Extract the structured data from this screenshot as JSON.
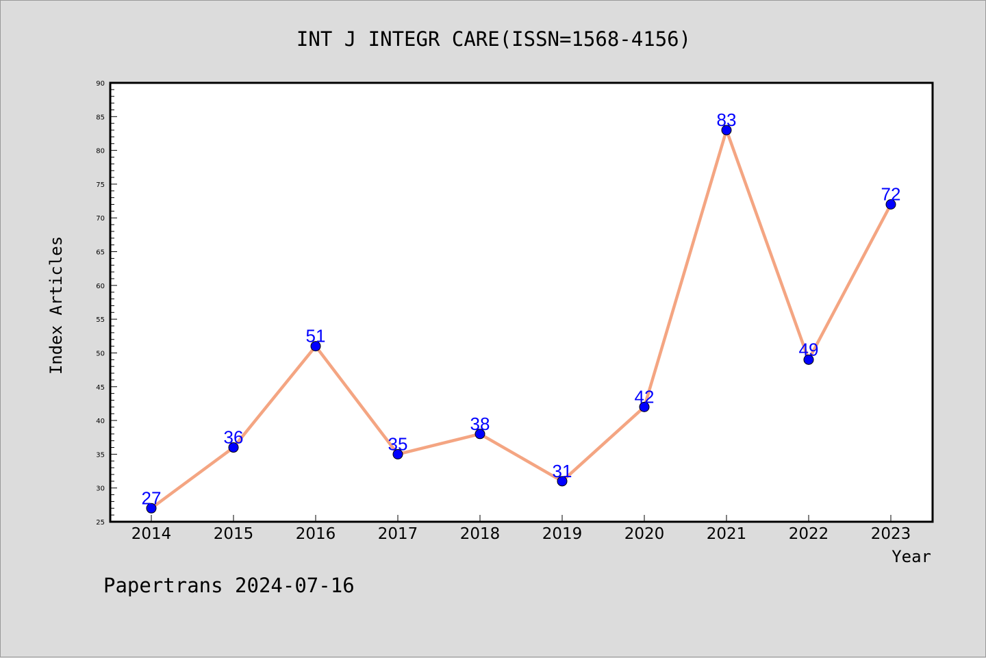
{
  "footer": "Papertrans 2024-07-16",
  "colors": {
    "background": "#dcdcdc",
    "plot_background": "#ffffff",
    "line": "#f4a582",
    "marker": "#0000ff",
    "data_label": "#0000ff"
  },
  "chart_data": {
    "type": "line",
    "title": "INT J INTEGR CARE(ISSN=1568-4156)",
    "xlabel": "Year",
    "ylabel": "Index Articles",
    "categories": [
      "2014",
      "2015",
      "2016",
      "2017",
      "2018",
      "2019",
      "2020",
      "2021",
      "2022",
      "2023"
    ],
    "series": [
      {
        "values": [
          27,
          36,
          51,
          35,
          38,
          31,
          42,
          83,
          49,
          72
        ]
      }
    ],
    "ylim": [
      25,
      90
    ],
    "yticks": [
      25,
      30,
      35,
      40,
      45,
      50,
      55,
      60,
      65,
      70,
      75,
      80,
      85,
      90
    ],
    "data_labels": true,
    "grid": false,
    "legend": "none"
  }
}
